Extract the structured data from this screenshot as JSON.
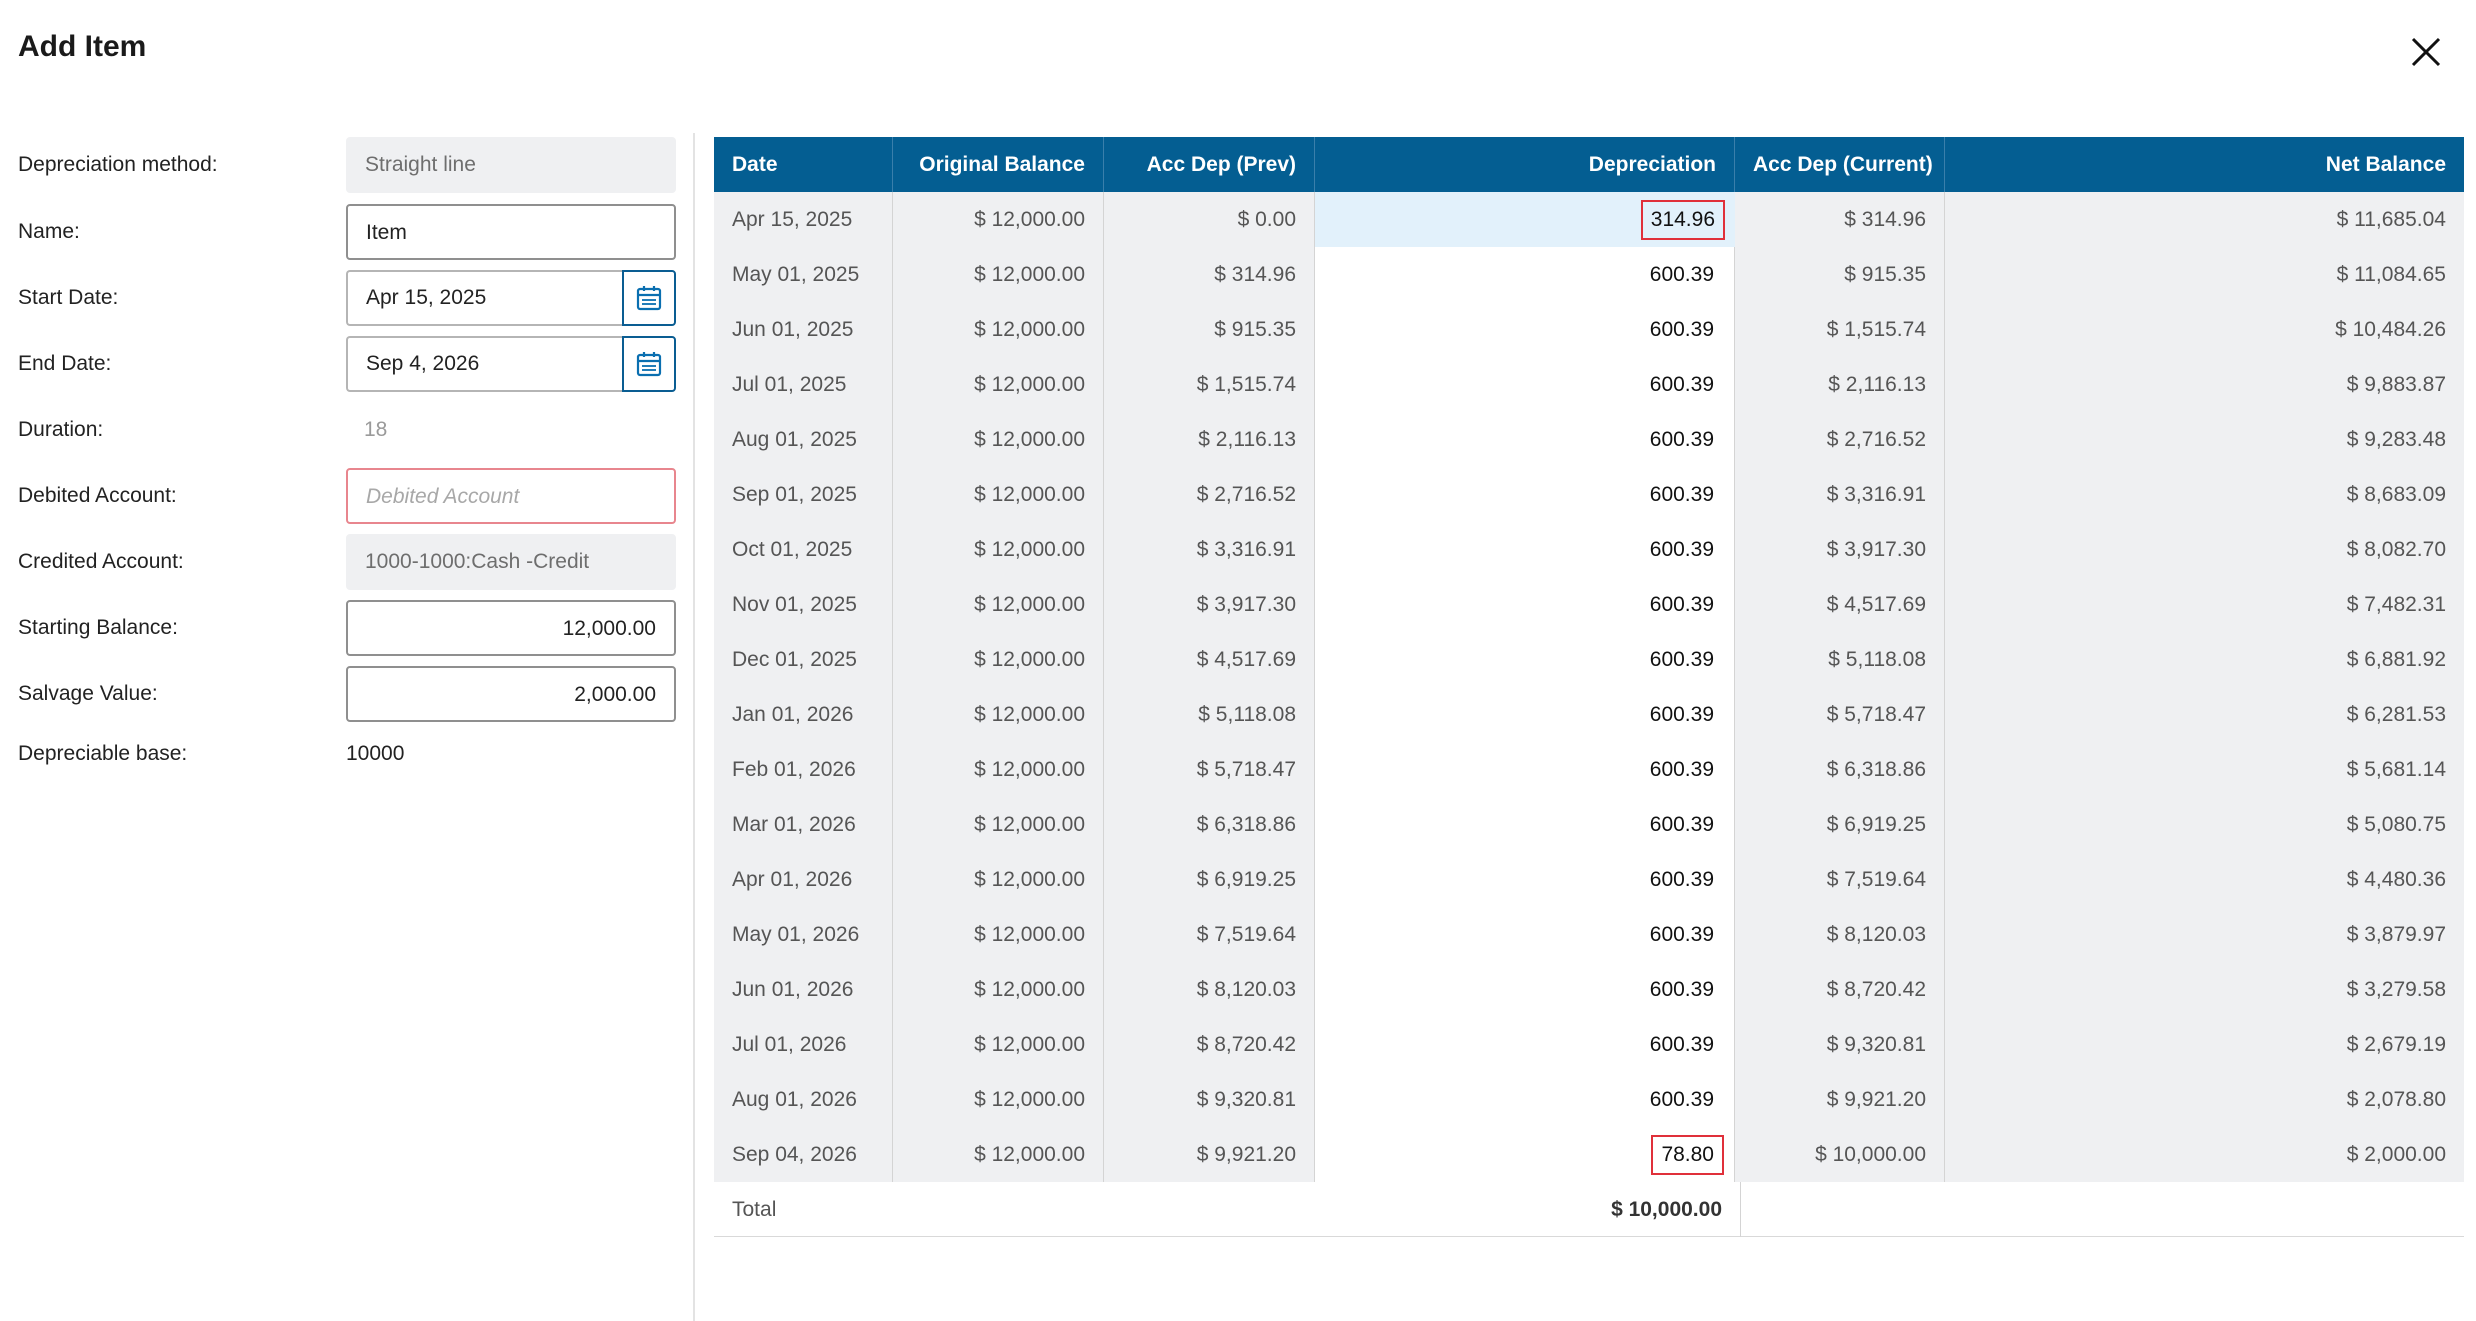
{
  "dialog": {
    "title": "Add Item"
  },
  "form": {
    "depreciation_method_label": "Depreciation method:",
    "depreciation_method_value": "Straight line",
    "name_label": "Name:",
    "name_value": "Item",
    "start_date_label": "Start Date:",
    "start_date_value": "Apr 15, 2025",
    "end_date_label": "End Date:",
    "end_date_value": "Sep 4, 2026",
    "duration_label": "Duration:",
    "duration_value": "18",
    "debited_account_label": "Debited Account:",
    "debited_account_placeholder": "Debited Account",
    "credited_account_label": "Credited Account:",
    "credited_account_value": "1000-1000:Cash -Credit",
    "starting_balance_label": "Starting Balance:",
    "starting_balance_value": "12,000.00",
    "salvage_value_label": "Salvage Value:",
    "salvage_value_value": "2,000.00",
    "depreciable_base_label": "Depreciable base:",
    "depreciable_base_value": "10000"
  },
  "table": {
    "headers": [
      "Date",
      "Original Balance",
      "Acc Dep (Prev)",
      "Depreciation",
      "Acc Dep (Current)",
      "Net Balance"
    ],
    "rows": [
      {
        "date": "Apr 15, 2025",
        "original": "$ 12,000.00",
        "prev": "$ 0.00",
        "dep": "314.96",
        "current": "$ 314.96",
        "net": "$ 11,685.04"
      },
      {
        "date": "May 01, 2025",
        "original": "$ 12,000.00",
        "prev": "$ 314.96",
        "dep": "600.39",
        "current": "$ 915.35",
        "net": "$ 11,084.65"
      },
      {
        "date": "Jun 01, 2025",
        "original": "$ 12,000.00",
        "prev": "$ 915.35",
        "dep": "600.39",
        "current": "$ 1,515.74",
        "net": "$ 10,484.26"
      },
      {
        "date": "Jul 01, 2025",
        "original": "$ 12,000.00",
        "prev": "$ 1,515.74",
        "dep": "600.39",
        "current": "$ 2,116.13",
        "net": "$ 9,883.87"
      },
      {
        "date": "Aug 01, 2025",
        "original": "$ 12,000.00",
        "prev": "$ 2,116.13",
        "dep": "600.39",
        "current": "$ 2,716.52",
        "net": "$ 9,283.48"
      },
      {
        "date": "Sep 01, 2025",
        "original": "$ 12,000.00",
        "prev": "$ 2,716.52",
        "dep": "600.39",
        "current": "$ 3,316.91",
        "net": "$ 8,683.09"
      },
      {
        "date": "Oct 01, 2025",
        "original": "$ 12,000.00",
        "prev": "$ 3,316.91",
        "dep": "600.39",
        "current": "$ 3,917.30",
        "net": "$ 8,082.70"
      },
      {
        "date": "Nov 01, 2025",
        "original": "$ 12,000.00",
        "prev": "$ 3,917.30",
        "dep": "600.39",
        "current": "$ 4,517.69",
        "net": "$ 7,482.31"
      },
      {
        "date": "Dec 01, 2025",
        "original": "$ 12,000.00",
        "prev": "$ 4,517.69",
        "dep": "600.39",
        "current": "$ 5,118.08",
        "net": "$ 6,881.92"
      },
      {
        "date": "Jan 01, 2026",
        "original": "$ 12,000.00",
        "prev": "$ 5,118.08",
        "dep": "600.39",
        "current": "$ 5,718.47",
        "net": "$ 6,281.53"
      },
      {
        "date": "Feb 01, 2026",
        "original": "$ 12,000.00",
        "prev": "$ 5,718.47",
        "dep": "600.39",
        "current": "$ 6,318.86",
        "net": "$ 5,681.14"
      },
      {
        "date": "Mar 01, 2026",
        "original": "$ 12,000.00",
        "prev": "$ 6,318.86",
        "dep": "600.39",
        "current": "$ 6,919.25",
        "net": "$ 5,080.75"
      },
      {
        "date": "Apr 01, 2026",
        "original": "$ 12,000.00",
        "prev": "$ 6,919.25",
        "dep": "600.39",
        "current": "$ 7,519.64",
        "net": "$ 4,480.36"
      },
      {
        "date": "May 01, 2026",
        "original": "$ 12,000.00",
        "prev": "$ 7,519.64",
        "dep": "600.39",
        "current": "$ 8,120.03",
        "net": "$ 3,879.97"
      },
      {
        "date": "Jun 01, 2026",
        "original": "$ 12,000.00",
        "prev": "$ 8,120.03",
        "dep": "600.39",
        "current": "$ 8,720.42",
        "net": "$ 3,279.58"
      },
      {
        "date": "Jul 01, 2026",
        "original": "$ 12,000.00",
        "prev": "$ 8,720.42",
        "dep": "600.39",
        "current": "$ 9,320.81",
        "net": "$ 2,679.19"
      },
      {
        "date": "Aug 01, 2026",
        "original": "$ 12,000.00",
        "prev": "$ 9,320.81",
        "dep": "600.39",
        "current": "$ 9,921.20",
        "net": "$ 2,078.80"
      },
      {
        "date": "Sep 04, 2026",
        "original": "$ 12,000.00",
        "prev": "$ 9,921.20",
        "dep": "78.80",
        "current": "$ 10,000.00",
        "net": "$ 2,000.00"
      }
    ],
    "total_label": "Total",
    "total_value": "$ 10,000.00"
  },
  "icons": {
    "close": "close-icon",
    "calendar": "calendar-icon"
  },
  "colors": {
    "header_bg": "#045e92",
    "accent": "#0a5d92",
    "error_border": "#e8868e",
    "highlight_box": "#e0303a"
  }
}
